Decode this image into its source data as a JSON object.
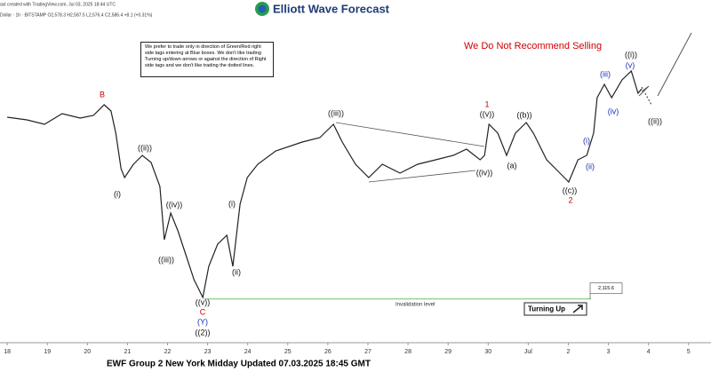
{
  "chart_data": {
    "type": "line",
    "header": "ast created with TradingView.com, Jul 03, 2025 18:44 UTC",
    "symbol_line": "Dollar · 1h · BITSTAMP  O2,578.3  H2,587.5  L2,576.4  C2,586.4  +8.1 (+0.31%)",
    "logo": "Elliott Wave Forecast",
    "note": "We prefer to trade only in direction of Green/Red right side tags entering at Blue boxes. We don't like trading Turning up/down arrows or against the direction of Right side tags and we don't like trading the dotted lines.",
    "warning": "We Do Not Recommend Selling",
    "invalidation_label": "Invalidation level",
    "turning_up": "Turning Up",
    "footer": "EWF Group 2 New York Midday Updated 07.03.2025 18:45 GMT",
    "color": "#222222",
    "x": [
      0,
      0.49,
      0.93,
      1.37,
      1.82,
      2.15,
      2.42,
      2.59,
      2.71,
      2.84,
      2.93,
      3.15,
      3.37,
      3.59,
      3.81,
      3.92,
      4.08,
      4.26,
      4.48,
      4.66,
      4.88,
      5.03,
      5.25,
      5.48,
      5.63,
      5.81,
      5.99,
      6.25,
      6.7,
      7.36,
      7.8,
      8.14,
      8.36,
      8.69,
      9.02,
      9.36,
      9.8,
      10.24,
      10.69,
      11.13,
      11.46,
      11.8,
      11.91,
      12.02,
      12.24,
      12.46,
      12.68,
      12.95,
      13.13,
      13.46,
      13.79,
      14.01,
      14.24,
      14.46,
      14.63,
      14.72,
      14.9,
      15.08,
      15.34,
      15.57,
      15.74,
      15.83
    ],
    "values": [
      2522.4,
      2516.5,
      2506.5,
      2530.4,
      2520.4,
      2526.4,
      2550.2,
      2536.3,
      2486.6,
      2407.2,
      2387.3,
      2417.1,
      2437.0,
      2421.1,
      2367.4,
      2248.2,
      2307.8,
      2268.1,
      2208.5,
      2158.8,
      2119.1,
      2188.6,
      2238.3,
      2258.1,
      2188.6,
      2327.7,
      2387.3,
      2417.1,
      2446.9,
      2466.8,
      2476.7,
      2506.5,
      2466.8,
      2417.1,
      2387.3,
      2417.1,
      2397.2,
      2417.1,
      2427.0,
      2437.0,
      2450.9,
      2427.0,
      2437.0,
      2506.5,
      2486.6,
      2437.0,
      2486.6,
      2510.5,
      2486.6,
      2427.0,
      2397.2,
      2377.4,
      2427.0,
      2437.0,
      2486.6,
      2566.1,
      2595.9,
      2566.1,
      2605.9,
      2625.7,
      2576.1,
      2586.0
    ],
    "xlim": [
      -0.18,
      17.56
    ],
    "ylim": [
      2019.7,
      2784.7
    ],
    "xticks": [
      {
        "value": 0,
        "label": "18"
      },
      {
        "value": 1,
        "label": "19"
      },
      {
        "value": 2,
        "label": "20"
      },
      {
        "value": 3,
        "label": "21"
      },
      {
        "value": 4,
        "label": "22"
      },
      {
        "value": 5,
        "label": "23"
      },
      {
        "value": 6,
        "label": "24"
      },
      {
        "value": 7,
        "label": "25"
      },
      {
        "value": 8,
        "label": "26"
      },
      {
        "value": 9,
        "label": "27"
      },
      {
        "value": 10,
        "label": "28"
      },
      {
        "value": 11,
        "label": "29"
      },
      {
        "value": 12,
        "label": "30"
      },
      {
        "value": 13,
        "label": "Jul"
      },
      {
        "value": 14,
        "label": "2"
      },
      {
        "value": 15,
        "label": "3"
      },
      {
        "value": 16,
        "label": "4"
      },
      {
        "value": 17,
        "label": "5"
      }
    ],
    "price_tag": {
      "value": 2115.6,
      "label": "2,115.6"
    },
    "annotations": [
      {
        "text": "B",
        "color": "#d00000"
      },
      {
        "text": "(i)",
        "color": "#111111"
      },
      {
        "text": "((ii))",
        "color": "#111111"
      },
      {
        "text": "((iv))",
        "color": "#111111"
      },
      {
        "text": "((iii))",
        "color": "#111111"
      },
      {
        "text": "(i)",
        "color": "#111111"
      },
      {
        "text": "(ii)",
        "color": "#111111"
      },
      {
        "text": "((v))",
        "color": "#111111"
      },
      {
        "text": "C",
        "color": "#d00000"
      },
      {
        "text": "(Y)",
        "color": "#1a2fb0"
      },
      {
        "text": "((2))",
        "color": "#111111"
      },
      {
        "text": "((iii))",
        "color": "#111111"
      },
      {
        "text": "((iv))",
        "color": "#111111"
      },
      {
        "text": "1",
        "color": "#d00000"
      },
      {
        "text": "((v))",
        "color": "#111111"
      },
      {
        "text": "((b))",
        "color": "#111111"
      },
      {
        "text": "(a)",
        "color": "#111111"
      },
      {
        "text": "((c))",
        "color": "#111111"
      },
      {
        "text": "2",
        "color": "#d00000"
      },
      {
        "text": "(i)",
        "color": "#1a2fb0"
      },
      {
        "text": "(ii)",
        "color": "#1a2fb0"
      },
      {
        "text": "(iii)",
        "color": "#1a2fb0"
      },
      {
        "text": "(v)",
        "color": "#1a2fb0"
      },
      {
        "text": "((i))",
        "color": "#111111"
      },
      {
        "text": "(iv)",
        "color": "#1a2fb0"
      },
      {
        "text": "((ii))",
        "color": "#111111"
      }
    ]
  }
}
